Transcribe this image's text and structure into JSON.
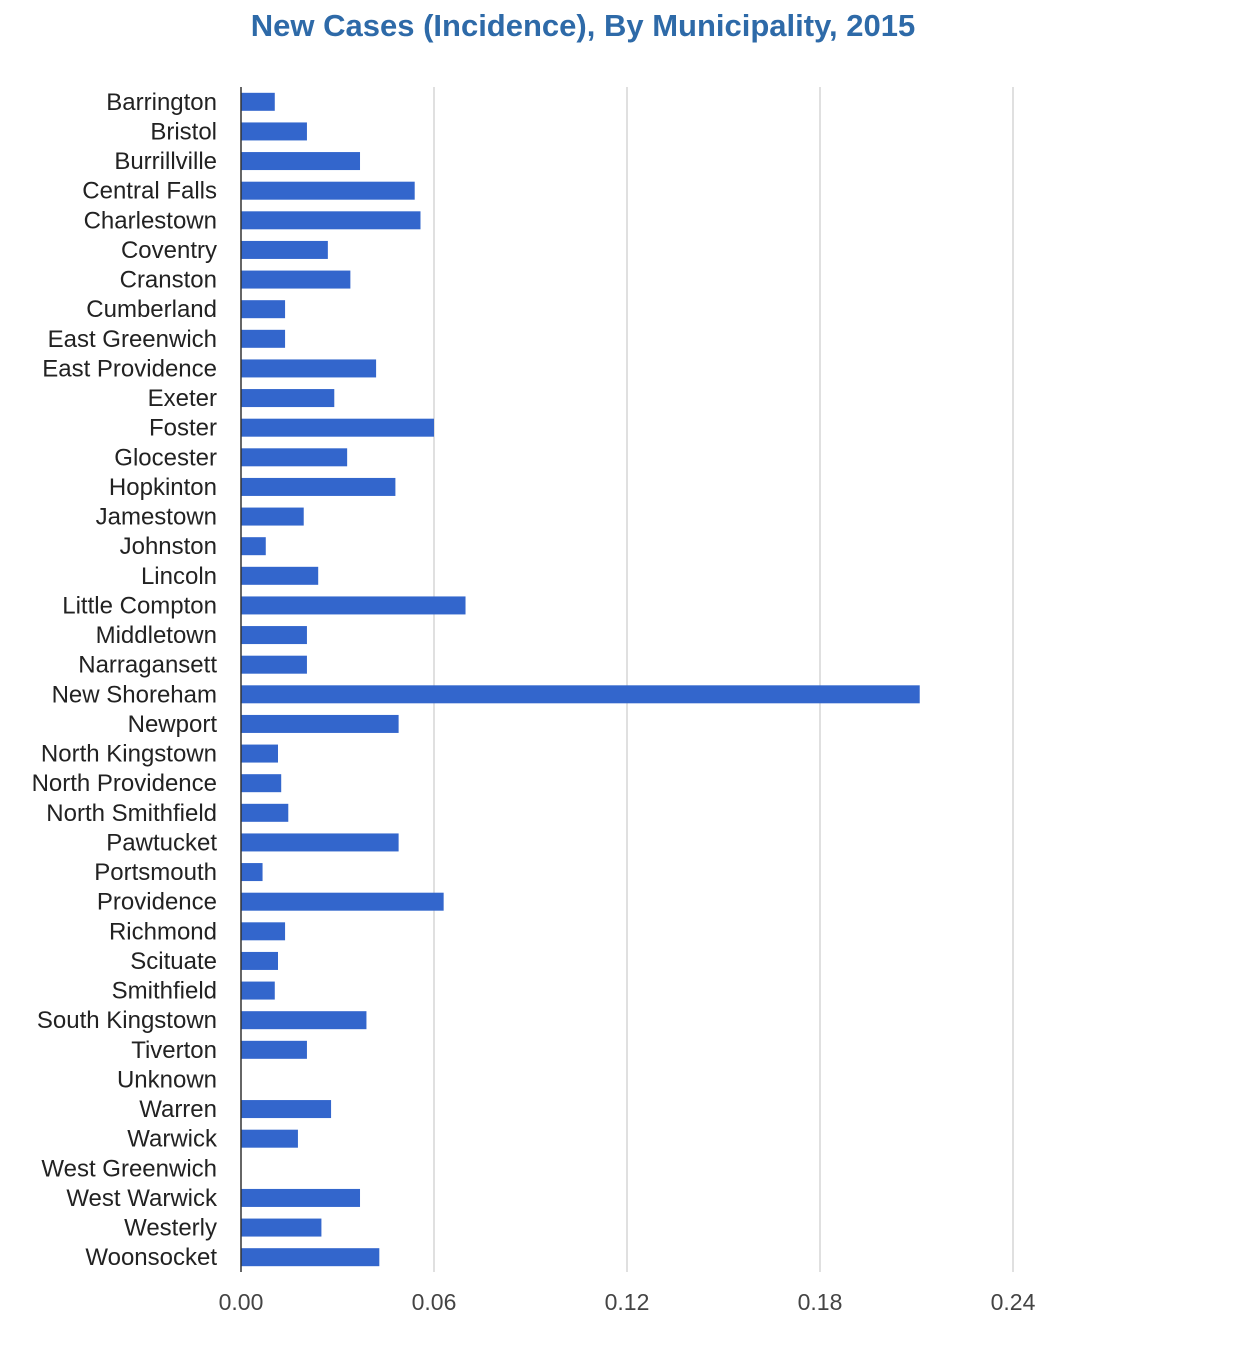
{
  "chart_data": {
    "type": "bar",
    "orientation": "horizontal",
    "title": "New Cases (Incidence), By Municipality, 2015",
    "xlabel": "",
    "ylabel": "",
    "xlim": [
      0,
      0.3
    ],
    "x_ticks": [
      "0.00",
      "0.06",
      "0.12",
      "0.18",
      "0.24"
    ],
    "x_tick_values": [
      0,
      0.06,
      0.12,
      0.18,
      0.24
    ],
    "grid": true,
    "bar_color": "#3366cc",
    "title_color": "#2e6aa8",
    "categories": [
      "Barrington",
      "Bristol",
      "Burrillville",
      "Central Falls",
      "Charlestown",
      "Coventry",
      "Cranston",
      "Cumberland",
      "East Greenwich",
      "East Providence",
      "Exeter",
      "Foster",
      "Glocester",
      "Hopkinton",
      "Jamestown",
      "Johnston",
      "Lincoln",
      "Little Compton",
      "Middletown",
      "Narragansett",
      "New Shoreham",
      "Newport",
      "North Kingstown",
      "North Providence",
      "North Smithfield",
      "Pawtucket",
      "Portsmouth",
      "Providence",
      "Richmond",
      "Scituate",
      "Smithfield",
      "South Kingstown",
      "Tiverton",
      "Unknown",
      "Warren",
      "Warwick",
      "West Greenwich",
      "West Warwick",
      "Westerly",
      "Woonsocket"
    ],
    "values": [
      0.0105,
      0.0205,
      0.037,
      0.054,
      0.0558,
      0.027,
      0.034,
      0.0137,
      0.0137,
      0.042,
      0.029,
      0.06,
      0.033,
      0.048,
      0.0195,
      0.0077,
      0.024,
      0.0698,
      0.0205,
      0.0205,
      0.211,
      0.049,
      0.0115,
      0.0125,
      0.0147,
      0.049,
      0.0067,
      0.063,
      0.0137,
      0.0115,
      0.0105,
      0.039,
      0.0205,
      0.0,
      0.028,
      0.0177,
      0.0,
      0.037,
      0.025,
      0.043
    ]
  }
}
